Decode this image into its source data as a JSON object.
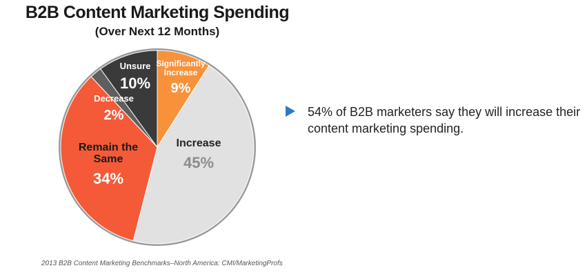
{
  "chart_data": {
    "type": "pie",
    "title": "B2B Content Marketing Spending",
    "subtitle": "(Over Next 12 Months)",
    "slices": [
      {
        "name_lines": [
          "Significantly",
          "Increase"
        ],
        "value": 9,
        "value_label": "9%",
        "color": "#f7923a",
        "text_color": "#ffffff",
        "value_color": "#ffffff"
      },
      {
        "name_lines": [
          "Increase"
        ],
        "value": 45,
        "value_label": "45%",
        "color": "#e1e1e1",
        "text_color": "#222222",
        "value_color": "#8c8c8c"
      },
      {
        "name_lines": [
          "Remain the",
          "Same"
        ],
        "value": 34,
        "value_label": "34%",
        "color": "#f45a38",
        "text_color": "#1a1a1a",
        "value_color": "#ffffff"
      },
      {
        "name_lines": [
          "Decrease"
        ],
        "value": 2,
        "value_label": "2%",
        "color": "#5f5f5f",
        "text_color": "#ffffff",
        "value_color": "#ffffff"
      },
      {
        "name_lines": [
          "Unsure"
        ],
        "value": 10,
        "value_label": "10%",
        "color": "#3a3a3a",
        "text_color": "#ffffff",
        "value_color": "#ffffff"
      }
    ]
  },
  "callout": {
    "text": "54% of B2B marketers say they will increase their content marketing spending."
  },
  "source": "2013 B2B Content Marketing Benchmarks–North America: CMI/MarketingProfs"
}
